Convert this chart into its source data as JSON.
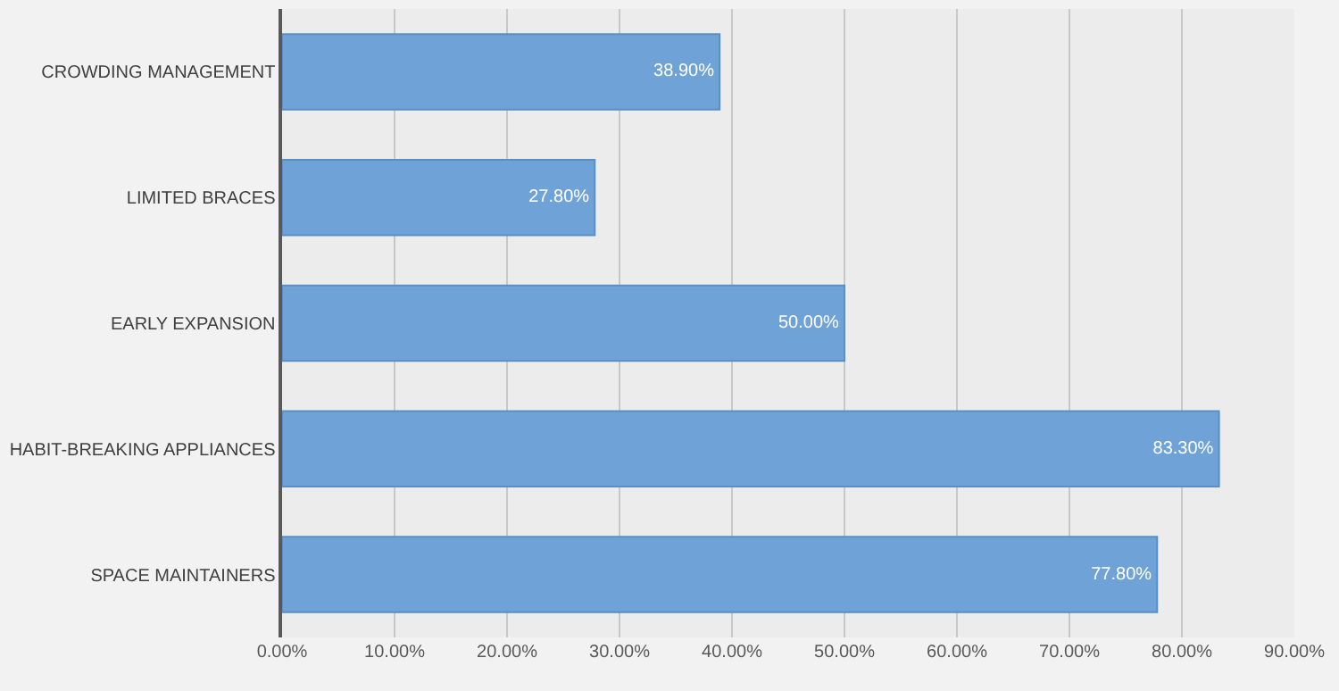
{
  "chart_data": {
    "type": "bar",
    "orientation": "horizontal",
    "categories": [
      "CROWDING MANAGEMENT",
      "LIMITED BRACES",
      "EARLY EXPANSION",
      "HABIT-BREAKING APPLIANCES",
      "SPACE MAINTAINERS"
    ],
    "values": [
      38.9,
      27.8,
      50.0,
      83.3,
      77.8
    ],
    "value_labels": [
      "38.90%",
      "27.80%",
      "50.00%",
      "83.30%",
      "77.80%"
    ],
    "color": "#6fa3d8",
    "xlim": [
      0,
      90
    ],
    "xticks": [
      {
        "value": 0,
        "label": "0.00%"
      },
      {
        "value": 10,
        "label": "10.00%"
      },
      {
        "value": 20,
        "label": "20.00%"
      },
      {
        "value": 30,
        "label": "30.00%"
      },
      {
        "value": 40,
        "label": "40.00%"
      },
      {
        "value": 50,
        "label": "50.00%"
      },
      {
        "value": 60,
        "label": "60.00%"
      },
      {
        "value": 70,
        "label": "70.00%"
      },
      {
        "value": 80,
        "label": "80.00%"
      },
      {
        "value": 90,
        "label": "90.00%"
      }
    ],
    "grid": "x"
  }
}
